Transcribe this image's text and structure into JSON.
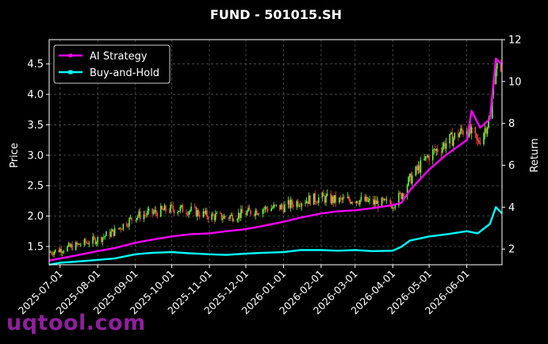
{
  "watermark": "uqtool.com",
  "chart_data": {
    "type": "line",
    "title": "FUND - 501015.SH",
    "ylabel": "Price",
    "ylabel_right": "Return",
    "ylim": [
      1.2,
      4.9
    ],
    "ylim_right": [
      1.25,
      12.0
    ],
    "xlim": [
      "2025-06-22",
      "2026-06-30"
    ],
    "yticks": [
      1.5,
      2.0,
      2.5,
      3.0,
      3.5,
      4.0,
      4.5
    ],
    "yticks_right": [
      2,
      4,
      6,
      8,
      10,
      12
    ],
    "xticks": [
      "2025-07-01",
      "2025-08-01",
      "2025-09-01",
      "2025-10-01",
      "2025-11-01",
      "2025-12-01",
      "2026-01-01",
      "2026-02-01",
      "2026-03-01",
      "2026-04-01",
      "2026-05-01",
      "2026-06-01"
    ],
    "grid": true,
    "legend_position": "top-left",
    "colors": {
      "ai": "#ff00ff",
      "bh": "#00ffff",
      "candle_up": "#5dff3a",
      "candle_down": "#ff4a4a"
    },
    "price": {
      "x": [
        "2025-06-22",
        "2025-07-01",
        "2025-07-15",
        "2025-08-01",
        "2025-08-15",
        "2025-09-01",
        "2025-09-15",
        "2025-10-01",
        "2025-10-15",
        "2025-11-01",
        "2025-11-15",
        "2025-12-01",
        "2025-12-15",
        "2026-01-01",
        "2026-01-15",
        "2026-02-01",
        "2026-02-15",
        "2026-03-01",
        "2026-03-15",
        "2026-04-01",
        "2026-04-08",
        "2026-04-15",
        "2026-05-01",
        "2026-05-15",
        "2026-06-01",
        "2026-06-10",
        "2026-06-20",
        "2026-06-25",
        "2026-06-30"
      ],
      "y": [
        1.4,
        1.45,
        1.52,
        1.62,
        1.75,
        2.0,
        2.05,
        2.12,
        2.1,
        2.0,
        1.98,
        2.05,
        2.12,
        2.15,
        2.25,
        2.3,
        2.25,
        2.28,
        2.22,
        2.2,
        2.35,
        2.6,
        3.0,
        3.2,
        3.45,
        3.2,
        3.6,
        4.5,
        4.2
      ]
    },
    "series": [
      {
        "name": "AI Strategy",
        "x": [
          "2025-06-22",
          "2025-07-01",
          "2025-07-15",
          "2025-08-01",
          "2025-08-15",
          "2025-09-01",
          "2025-09-15",
          "2025-10-01",
          "2025-10-15",
          "2025-11-01",
          "2025-11-15",
          "2025-12-01",
          "2025-12-15",
          "2026-01-01",
          "2026-01-15",
          "2026-02-01",
          "2026-02-15",
          "2026-03-01",
          "2026-03-15",
          "2026-04-01",
          "2026-04-08",
          "2026-04-15",
          "2026-05-01",
          "2026-05-15",
          "2026-06-01",
          "2026-06-05",
          "2026-06-12",
          "2026-06-20",
          "2026-06-25",
          "2026-06-30"
        ],
        "values": [
          1.45,
          1.55,
          1.7,
          1.9,
          2.05,
          2.3,
          2.45,
          2.6,
          2.7,
          2.75,
          2.85,
          2.95,
          3.1,
          3.3,
          3.5,
          3.7,
          3.8,
          3.85,
          3.95,
          4.1,
          4.2,
          4.8,
          5.8,
          6.5,
          7.2,
          8.6,
          7.8,
          8.2,
          11.1,
          10.8
        ]
      },
      {
        "name": "Buy-and-Hold",
        "x": [
          "2025-06-22",
          "2025-07-01",
          "2025-07-15",
          "2025-08-01",
          "2025-08-15",
          "2025-09-01",
          "2025-09-15",
          "2025-10-01",
          "2025-10-15",
          "2025-11-01",
          "2025-11-15",
          "2025-12-01",
          "2025-12-15",
          "2026-01-01",
          "2026-01-15",
          "2026-02-01",
          "2026-02-15",
          "2026-03-01",
          "2026-03-15",
          "2026-04-01",
          "2026-04-08",
          "2026-04-15",
          "2026-05-01",
          "2026-05-15",
          "2026-06-01",
          "2026-06-10",
          "2026-06-20",
          "2026-06-25",
          "2026-06-30"
        ],
        "values": [
          1.25,
          1.35,
          1.4,
          1.48,
          1.55,
          1.75,
          1.82,
          1.85,
          1.8,
          1.75,
          1.72,
          1.78,
          1.82,
          1.85,
          1.95,
          1.95,
          1.92,
          1.95,
          1.9,
          1.92,
          2.1,
          2.4,
          2.6,
          2.7,
          2.85,
          2.75,
          3.2,
          4.0,
          3.7
        ]
      }
    ]
  }
}
